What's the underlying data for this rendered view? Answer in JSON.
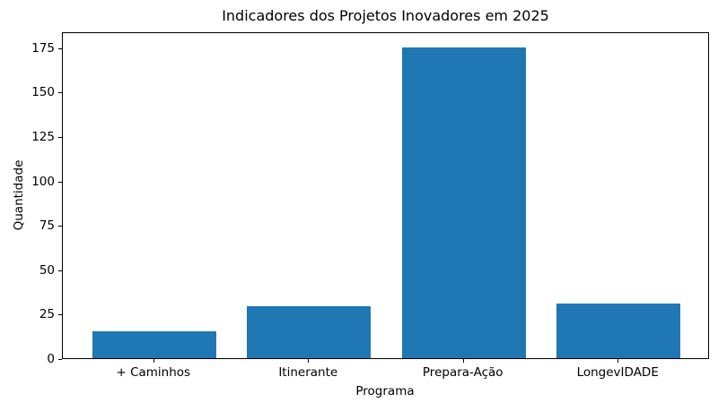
{
  "chart_data": {
    "type": "bar",
    "title": "Indicadores dos Projetos Inovadores em 2025",
    "xlabel": "Programa",
    "ylabel": "Quantidade",
    "categories": [
      "+ Caminhos",
      "Itinerante",
      "Prepara-Ação",
      "LongevIDADE"
    ],
    "values": [
      15,
      29,
      175,
      31
    ],
    "yticks": [
      0,
      25,
      50,
      75,
      100,
      125,
      150,
      175
    ],
    "ylim": [
      0,
      184
    ],
    "bar_color": "#1f77b4",
    "grid": false,
    "legend_position": "none"
  }
}
